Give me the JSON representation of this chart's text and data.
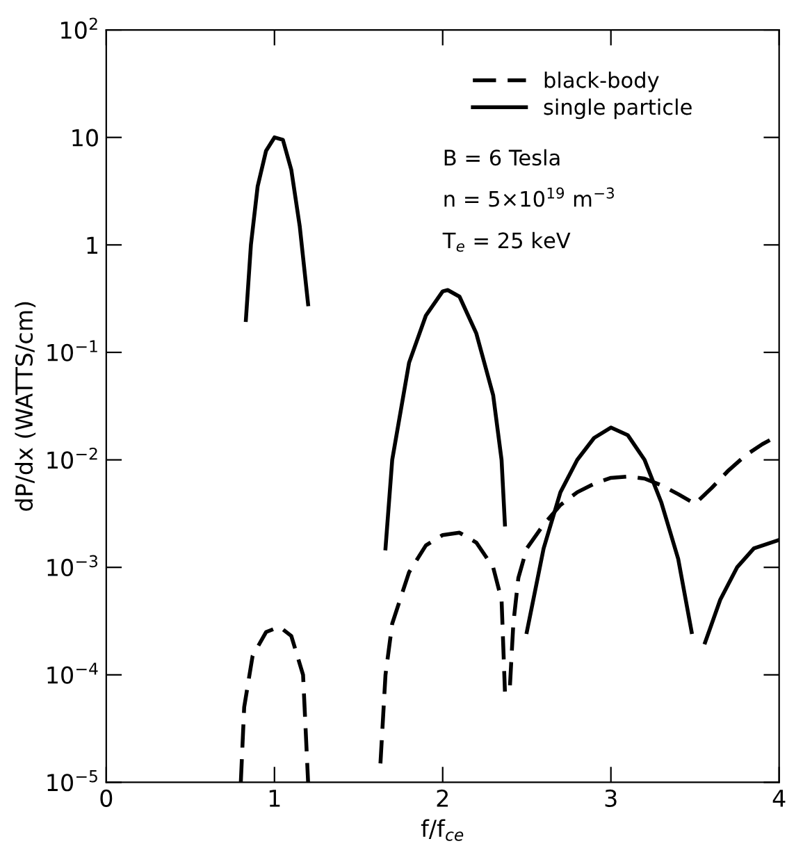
{
  "chart_data": {
    "type": "line",
    "xlabel": "f/f$_{ce}$",
    "ylabel": "dP/dx (WATTS/cm)",
    "log": "y",
    "xlim": [
      0,
      4
    ],
    "xticks": [
      0,
      1,
      2,
      3,
      4
    ],
    "ylim": [
      1e-05,
      100
    ],
    "yticks": [
      {
        "value": 1e-05,
        "label": "10$^{−5}$"
      },
      {
        "value": 0.0001,
        "label": "10$^{−4}$"
      },
      {
        "value": 0.001,
        "label": "10$^{−3}$"
      },
      {
        "value": 0.01,
        "label": "10$^{−2}$"
      },
      {
        "value": 0.1,
        "label": "10$^{−1}$"
      },
      1,
      10,
      {
        "value": 100,
        "label": "10$^{2}$"
      }
    ],
    "grid": false,
    "legend": "top right",
    "marker": "none",
    "series": [
      {
        "name": "black-body",
        "color": "#000000",
        "line_style": "dashed",
        "x": [
          0.8,
          0.82,
          0.87,
          0.95,
          1.03,
          1.1,
          1.17,
          1.2,
          null,
          1.63,
          1.66,
          1.7,
          1.8,
          1.9,
          2.0,
          2.1,
          2.2,
          2.3,
          2.35,
          2.37,
          null,
          2.4,
          2.42,
          2.45,
          2.5,
          2.6,
          2.7,
          2.8,
          2.9,
          3.0,
          3.1,
          3.2,
          3.3,
          3.4,
          3.5,
          3.6,
          3.7,
          3.8,
          3.9,
          4.0
        ],
        "values": [
          1e-05,
          5e-05,
          0.00015,
          0.00025,
          0.00028,
          0.00023,
          0.0001,
          1e-05,
          null,
          1.5e-05,
          0.0001,
          0.0003,
          0.0009,
          0.0016,
          0.002,
          0.0021,
          0.0017,
          0.001,
          0.0005,
          7e-05,
          null,
          8e-05,
          0.0003,
          0.0008,
          0.0015,
          0.0025,
          0.0038,
          0.005,
          0.006,
          0.0068,
          0.007,
          0.0067,
          0.0058,
          0.0048,
          0.0039,
          0.0055,
          0.008,
          0.011,
          0.014,
          0.017
        ]
      },
      {
        "name": "single particle",
        "color": "#000000",
        "line_style": "solid",
        "x": [
          0.83,
          0.86,
          0.9,
          0.95,
          1.0,
          1.05,
          1.1,
          1.15,
          1.2,
          null,
          1.66,
          1.7,
          1.8,
          1.9,
          2.0,
          2.03,
          2.1,
          2.2,
          2.3,
          2.35,
          2.37,
          null,
          2.5,
          2.6,
          2.7,
          2.8,
          2.9,
          3.0,
          3.1,
          3.2,
          3.3,
          3.4,
          3.48,
          null,
          3.56,
          3.65,
          3.75,
          3.85,
          4.0
        ],
        "values": [
          0.2,
          1,
          3.5,
          7.5,
          10,
          9.5,
          5,
          1.5,
          0.28,
          null,
          0.0015,
          0.01,
          0.08,
          0.22,
          0.37,
          0.38,
          0.33,
          0.15,
          0.04,
          0.01,
          0.0025,
          null,
          0.00025,
          0.0015,
          0.005,
          0.01,
          0.016,
          0.02,
          0.017,
          0.01,
          0.004,
          0.0012,
          0.00025,
          null,
          0.0002,
          0.0005,
          0.001,
          0.0015,
          0.0018
        ]
      }
    ],
    "annotations": [
      "B = 6 Tesla",
      "n = 5×10$^{19}$ m$^{−3}$",
      "T$_{e}$ = 25 keV"
    ]
  }
}
